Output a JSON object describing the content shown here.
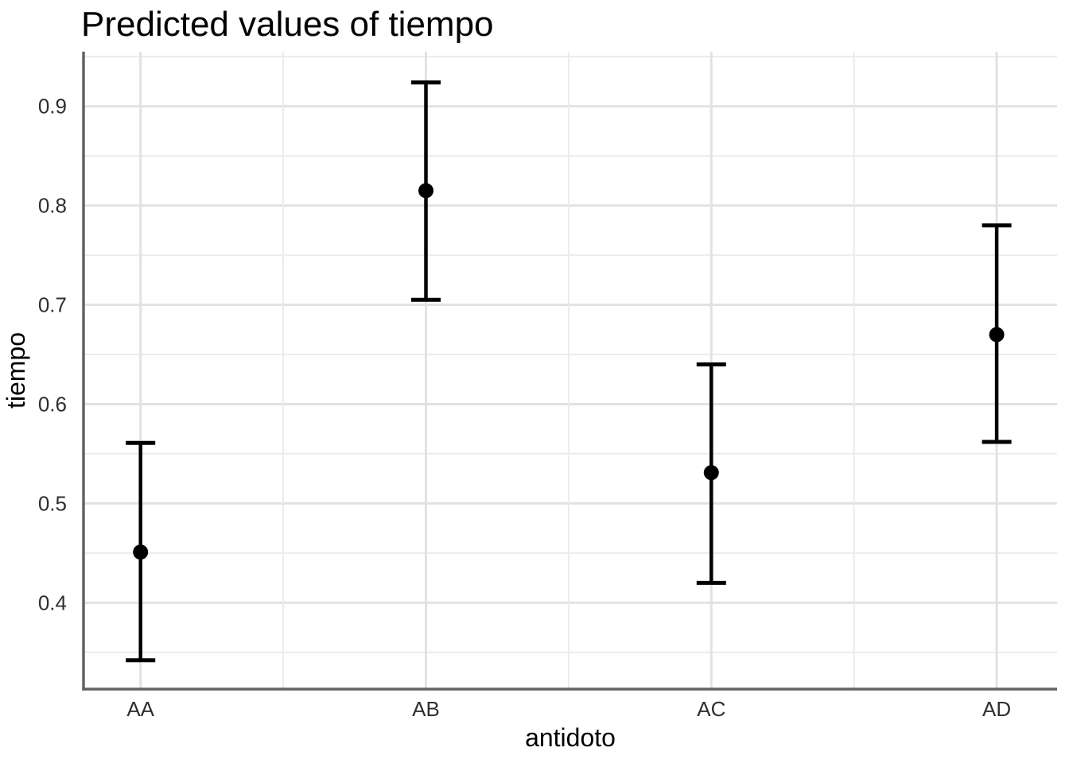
{
  "chart_data": {
    "type": "pointrange",
    "title": "Predicted values of tiempo",
    "xlabel": "antidoto",
    "ylabel": "tiempo",
    "categories": [
      "AA",
      "AB",
      "AC",
      "AD"
    ],
    "series": [
      {
        "name": "predicted",
        "values": [
          0.451,
          0.815,
          0.531,
          0.67
        ],
        "ci_low": [
          0.342,
          0.705,
          0.42,
          0.562
        ],
        "ci_high": [
          0.561,
          0.924,
          0.64,
          0.78
        ]
      }
    ],
    "x_axis": {
      "tick_labels": [
        "AA",
        "AB",
        "AC",
        "AD"
      ]
    },
    "y_axis": {
      "tick_values": [
        0.4,
        0.5,
        0.6,
        0.7,
        0.8,
        0.9
      ],
      "tick_labels": [
        "0.4",
        "0.5",
        "0.6",
        "0.7",
        "0.8",
        "0.9"
      ],
      "minor_tick_values": [
        0.35,
        0.45,
        0.55,
        0.65,
        0.75,
        0.85,
        0.95
      ],
      "range": [
        0.313,
        0.955
      ]
    },
    "grid": "on",
    "legend": "none",
    "colors": {
      "point": "#000000",
      "errorbar": "#000000",
      "grid_major": "#e2e2e2",
      "grid_minor": "#ebebeb",
      "axis_line": "#636363",
      "tick_text": "#2f2f2f",
      "title_text": "#000000",
      "background": "#ffffff"
    }
  }
}
